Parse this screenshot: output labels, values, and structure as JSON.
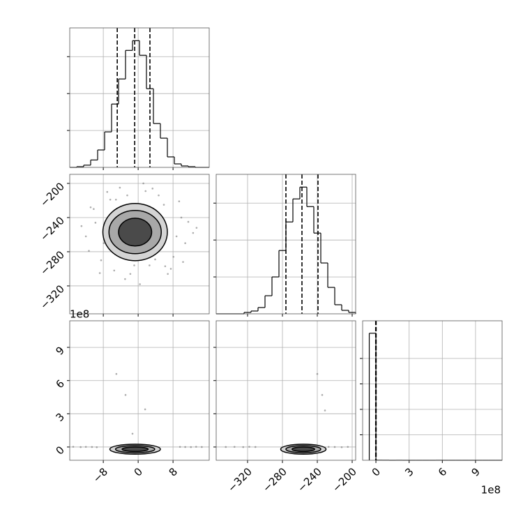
{
  "chart_data": [
    {
      "type": "histogram",
      "color": "#000000",
      "grid": true,
      "bins": [
        -15.7,
        -14.1,
        -12.5,
        -10.9,
        -9.3,
        -7.7,
        -6.1,
        -4.5,
        -2.9,
        -1.3,
        0.3,
        1.9,
        3.5,
        5.1,
        6.7,
        8.3,
        9.9,
        11.5,
        13.1,
        14.7,
        16.3
      ],
      "counts": [
        0,
        9,
        30,
        100,
        236,
        481,
        858,
        1198,
        1585,
        1717,
        1519,
        1066,
        594,
        396,
        142,
        47,
        19,
        9,
        0,
        0
      ],
      "quantiles": [
        -4.8,
        -0.8,
        2.7
      ],
      "xlim": [
        -15.7,
        16.3
      ],
      "xticks": [
        -8,
        0,
        8
      ],
      "ylim": [
        0,
        1890
      ],
      "yticks": [
        500,
        1000,
        1500
      ]
    },
    {
      "type": "scatter",
      "color": "#000000",
      "grid": true,
      "x": [
        -10.2,
        -8.5,
        -7.1,
        -12.0,
        9.4,
        10.8,
        6.2,
        -5.5,
        3.3,
        11.5,
        -3.0,
        1.2,
        -9.8,
        8.1,
        -6.4,
        4.7,
        -1.8,
        12.6,
        -11.3,
        7.5,
        -4.2,
        2.6,
        -13.0,
        5.9,
        0.4,
        -7.9,
        9.9,
        -2.5,
        6.8,
        -10.9,
        3.9,
        -5.1,
        13.4,
        -0.9,
        8.8,
        -8.8,
        1.7,
        -6.9,
        10.3,
        -3.6
      ],
      "y": [
        -230,
        -290,
        -210,
        -262,
        -221,
        -270,
        -297,
        -302,
        -206,
        -245,
        -312,
        -200,
        -246,
        -286,
        -219,
        -214,
        -306,
        -258,
        -279,
        -300,
        -205,
        -296,
        -250,
        -225,
        -318,
        -270,
        -240,
        -214,
        -306,
        -228,
        -289,
        -219,
        -252,
        -296,
        -262,
        -305,
        -209,
        -245,
        -292,
        -230
      ],
      "contours": {
        "cx": -0.7,
        "cy": -257,
        "rx": [
          7.4,
          6.0,
          3.8
        ],
        "ry": [
          33.5,
          25.3,
          16.3
        ]
      },
      "xlim": [
        -15.7,
        16.3
      ],
      "xticks": [
        -8,
        0,
        8
      ],
      "ylim": [
        -352.7,
        -189.4
      ],
      "yticks": [
        {
          "value": -200,
          "label": "−200"
        },
        {
          "value": -240,
          "label": "−240"
        },
        {
          "value": -280,
          "label": "−280"
        },
        {
          "value": -320,
          "label": "−320"
        }
      ]
    },
    {
      "type": "histogram",
      "color": "#000000",
      "grid": true,
      "bins": [
        -356,
        -348,
        -340,
        -332,
        -324,
        -316,
        -308,
        -300,
        -292,
        -284,
        -276,
        -268,
        -260,
        -252,
        -244,
        -236,
        -228,
        -220,
        -212,
        -204,
        -196
      ],
      "counts": [
        0,
        0,
        0,
        0,
        19,
        38,
        85,
        245,
        500,
        858,
        1245,
        1557,
        1717,
        1453,
        1094,
        689,
        358,
        123,
        47,
        19
      ],
      "quantiles": [
        -276,
        -257.6,
        -239.2
      ],
      "xlim": [
        -356,
        -196
      ],
      "xticks": [
        -320,
        -280,
        -240,
        -200
      ],
      "ylim": [
        0,
        1890
      ],
      "yticks": [
        500,
        1000,
        1500
      ]
    },
    {
      "type": "scatter",
      "color": "#000000",
      "grid": true,
      "x": [
        -14.9,
        -13.2,
        -12.0,
        -10.6,
        -9.5,
        9.6,
        10.8,
        12.1,
        13.3,
        14.6,
        -5.0,
        -2.9,
        1.6,
        -1.3
      ],
      "y": [
        0.02,
        -0.01,
        0.01,
        0,
        -0.02,
        0.01,
        0,
        -0.01,
        0.02,
        0,
        6.6,
        4.7,
        3.4,
        1.2
      ],
      "contours": {
        "cx": -0.7,
        "cy": -0.2,
        "rx": [
          5.8,
          4.5,
          3.0
        ],
        "ry": [
          0.45,
          0.32,
          0.2
        ]
      },
      "xlim": [
        -15.7,
        16.3
      ],
      "xticks": [
        {
          "value": -8,
          "label": "−8"
        },
        0,
        8
      ],
      "ylim": [
        -1.2,
        11.4
      ],
      "yticks": [
        0,
        3,
        6,
        9
      ],
      "y_offset_label": "1e8"
    },
    {
      "type": "scatter",
      "color": "#000000",
      "grid": true,
      "x": [
        -345,
        -335,
        -325,
        -318,
        -311,
        -205,
        -212,
        -220,
        -227,
        -240,
        -234.4,
        -231.2
      ],
      "y": [
        0,
        0.01,
        -0.01,
        0.02,
        0,
        0.01,
        -0.02,
        0,
        0.01,
        6.6,
        4.7,
        3.3
      ],
      "contours": {
        "cx": -256,
        "cy": -0.2,
        "rx": [
          26,
          20,
          13
        ],
        "ry": [
          0.45,
          0.32,
          0.2
        ]
      },
      "xlim": [
        -356,
        -196
      ],
      "xticks": [
        {
          "value": -320,
          "label": "−320"
        },
        {
          "value": -280,
          "label": "−280"
        },
        {
          "value": -240,
          "label": "−240"
        },
        {
          "value": -200,
          "label": "−200"
        }
      ],
      "ylim": [
        -1.2,
        11.4
      ],
      "yticks": [
        0,
        3,
        6,
        9
      ]
    },
    {
      "type": "histogram",
      "color": "#000000",
      "grid": true,
      "bins": [
        -0.6,
        0,
        0.6,
        1.2,
        1.8,
        2.4,
        3.0,
        3.6,
        4.2,
        4.8,
        5.4,
        6.0,
        6.6,
        7.2,
        7.8,
        8.4,
        9.0,
        9.6,
        10.2,
        10.8,
        11.4
      ],
      "counts": [
        4990,
        3,
        2,
        0,
        1,
        0,
        0,
        0,
        0,
        0,
        1,
        0,
        0,
        0,
        0,
        0,
        0,
        0,
        0,
        0
      ],
      "quantiles": [
        -0.02,
        0,
        0.02
      ],
      "xlim": [
        -1.2,
        11.4
      ],
      "xticks": [
        0,
        3,
        6,
        9
      ],
      "ylim": [
        0,
        5480
      ],
      "yticks": [
        1000,
        2000,
        3000,
        4000
      ],
      "x_offset_label": "1e8"
    }
  ]
}
